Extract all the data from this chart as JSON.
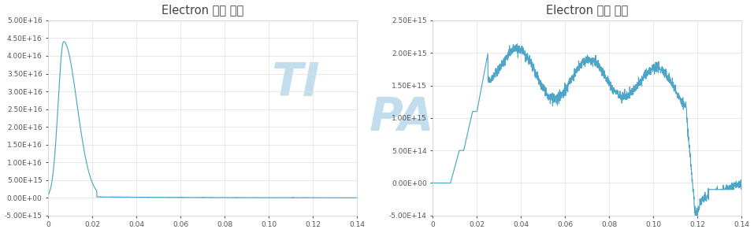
{
  "title": "Electron 밀도 분포",
  "line_color": "#4DA6C8",
  "background_color": "#FFFFFF",
  "grid_color": "#DDDDDD",
  "watermark_color": "#B8D8EC",
  "left_ylim": [
    -5000000000000000.0,
    5e+16
  ],
  "left_yticks": [
    -5000000000000000.0,
    0.0,
    5000000000000000.0,
    1e+16,
    1.5e+16,
    2e+16,
    2.5e+16,
    3e+16,
    3.5e+16,
    4e+16,
    4.5e+16,
    5e+16
  ],
  "right_ylim": [
    -500000000000000.0,
    2500000000000000.0
  ],
  "right_yticks": [
    -500000000000000.0,
    0.0,
    500000000000000.0,
    1000000000000000.0,
    1500000000000000.0,
    2000000000000000.0,
    2500000000000000.0
  ],
  "xlim": [
    0,
    0.14
  ],
  "xticks": [
    0,
    0.02,
    0.04,
    0.06,
    0.08,
    0.1,
    0.12,
    0.14
  ]
}
